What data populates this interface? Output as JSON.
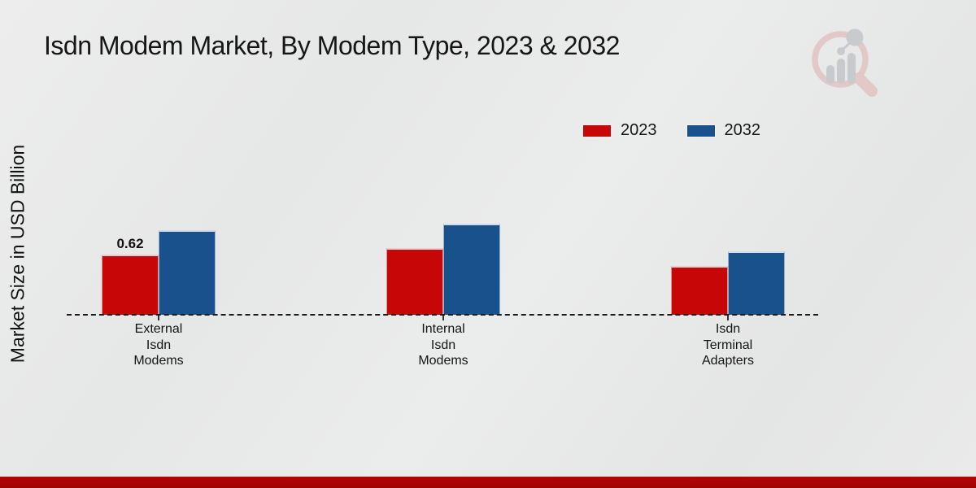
{
  "title": "Isdn Modem Market, By Modem Type, 2023 & 2032",
  "y_axis_label": "Market Size in USD Billion",
  "legend": {
    "items": [
      {
        "label": "2023",
        "color": "#c60607"
      },
      {
        "label": "2032",
        "color": "#19518d"
      }
    ]
  },
  "watermark": {
    "name": "market-research-future-logo"
  },
  "footer": {
    "strip_color": "#b30505"
  },
  "chart_data": {
    "type": "bar",
    "title": "Isdn Modem Market, By Modem Type, 2023 & 2032",
    "categories": [
      "External Isdn Modems",
      "Internal Isdn Modems",
      "Isdn Terminal Adapters"
    ],
    "category_lines": [
      [
        "External",
        "Isdn",
        "Modems"
      ],
      [
        "Internal",
        "Isdn",
        "Modems"
      ],
      [
        "Isdn",
        "Terminal",
        "Adapters"
      ]
    ],
    "series": [
      {
        "name": "2023",
        "color": "#c60607",
        "values": [
          0.62,
          0.69,
          0.5
        ]
      },
      {
        "name": "2032",
        "color": "#19518d",
        "values": [
          0.87,
          0.94,
          0.65
        ]
      }
    ],
    "data_labels": [
      {
        "series_index": 0,
        "category_index": 0,
        "text": "0.62"
      }
    ],
    "xlabel": "",
    "ylabel": "Market Size in USD Billion",
    "ylim": [
      0,
      1.1
    ],
    "grid": false,
    "y_axis_ticks_visible": false,
    "baseline_style": "dashed",
    "legend_position": "top-right"
  }
}
